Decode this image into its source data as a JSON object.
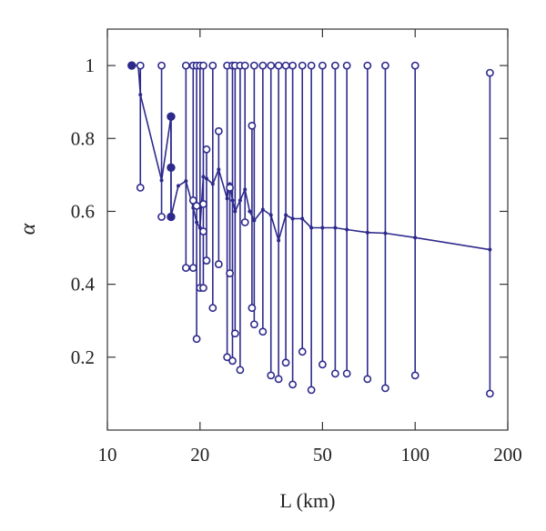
{
  "chart_data": {
    "type": "line",
    "title": "",
    "xlabel": "L (km)",
    "ylabel": "α",
    "x_scale": "log",
    "xlim": [
      10,
      200
    ],
    "ylim": [
      0.0,
      1.1
    ],
    "x_ticks": [
      10,
      20,
      50,
      100,
      200
    ],
    "y_ticks": [
      0.2,
      0.4,
      0.6,
      0.8,
      1.0
    ],
    "x_tick_labels": [
      "10",
      "20",
      "50",
      "100",
      "200"
    ],
    "y_tick_labels": [
      "0.2",
      "0.4",
      "0.6",
      "0.8",
      "1"
    ],
    "grid": false,
    "legend": "none",
    "color": "#2e2a8c",
    "mean_line": {
      "x": [
        12.0,
        12.6,
        12.8,
        15.0,
        16.1,
        16.1,
        16.1,
        17.0,
        18.0,
        19.0,
        19.5,
        20.0,
        20.5,
        21.0,
        22.0,
        23.0,
        24.5,
        25.0,
        25.5,
        26.0,
        27.0,
        28.0,
        29.0,
        30.0,
        32.0,
        34.0,
        36.0,
        38.0,
        40.0,
        43.0,
        46.0,
        50.0,
        55.0,
        60.0,
        70.0,
        80.0,
        100.0,
        175.0
      ],
      "y": [
        1.0,
        1.0,
        0.92,
        0.685,
        0.86,
        0.72,
        0.585,
        0.67,
        0.683,
        0.61,
        0.57,
        0.555,
        0.695,
        0.69,
        0.675,
        0.715,
        0.635,
        0.675,
        0.63,
        0.6,
        0.63,
        0.66,
        0.6,
        0.575,
        0.605,
        0.59,
        0.52,
        0.59,
        0.58,
        0.58,
        0.555,
        0.555,
        0.555,
        0.55,
        0.542,
        0.54,
        0.528,
        0.495
      ]
    },
    "ranges": [
      {
        "x": 12.8,
        "min": 0.665,
        "max": 1.0
      },
      {
        "x": 15.0,
        "min": 0.585,
        "max": 1.0
      },
      {
        "x": 16.1,
        "min": 0.585,
        "max": 0.86
      },
      {
        "x": 18.0,
        "min": 0.445,
        "max": 1.0
      },
      {
        "x": 19.0,
        "min": 0.445,
        "max": 1.0
      },
      {
        "x": 19.5,
        "min": 0.25,
        "max": 1.0
      },
      {
        "x": 20.0,
        "min": 0.39,
        "max": 1.0
      },
      {
        "x": 20.5,
        "min": 0.39,
        "max": 1.0
      },
      {
        "x": 21.0,
        "min": 0.465,
        "max": 0.77
      },
      {
        "x": 22.0,
        "min": 0.335,
        "max": 1.0
      },
      {
        "x": 23.0,
        "min": 0.455,
        "max": 0.82
      },
      {
        "x": 24.5,
        "min": 0.2,
        "max": 1.0
      },
      {
        "x": 25.0,
        "min": 0.43,
        "max": 0.665
      },
      {
        "x": 25.5,
        "min": 0.19,
        "max": 1.0
      },
      {
        "x": 26.0,
        "min": 0.265,
        "max": 1.0
      },
      {
        "x": 27.0,
        "min": 0.165,
        "max": 1.0
      },
      {
        "x": 28.0,
        "min": 0.57,
        "max": 1.0
      },
      {
        "x": 29.5,
        "min": 0.335,
        "max": 0.835
      },
      {
        "x": 30.0,
        "min": 0.29,
        "max": 1.0
      },
      {
        "x": 32.0,
        "min": 0.27,
        "max": 1.0
      },
      {
        "x": 34.0,
        "min": 0.15,
        "max": 1.0
      },
      {
        "x": 36.0,
        "min": 0.14,
        "max": 1.0
      },
      {
        "x": 38.0,
        "min": 0.185,
        "max": 1.0
      },
      {
        "x": 40.0,
        "min": 0.125,
        "max": 1.0
      },
      {
        "x": 43.0,
        "min": 0.215,
        "max": 1.0
      },
      {
        "x": 46.0,
        "min": 0.11,
        "max": 1.0
      },
      {
        "x": 50.0,
        "min": 0.18,
        "max": 1.0
      },
      {
        "x": 55.0,
        "min": 0.155,
        "max": 1.0
      },
      {
        "x": 60.0,
        "min": 0.155,
        "max": 1.0
      },
      {
        "x": 70.0,
        "min": 0.14,
        "max": 1.0
      },
      {
        "x": 80.0,
        "min": 0.115,
        "max": 1.0
      },
      {
        "x": 100.0,
        "min": 0.15,
        "max": 1.0
      },
      {
        "x": 175.0,
        "min": 0.1,
        "max": 0.98
      }
    ],
    "extra_open_markers": [
      {
        "x": 20.5,
        "y": 0.62
      },
      {
        "x": 20.5,
        "y": 0.545
      },
      {
        "x": 19.0,
        "y": 0.63
      },
      {
        "x": 19.5,
        "y": 0.615
      }
    ],
    "filled_markers": [
      {
        "x": 12.0,
        "y": 1.0
      },
      {
        "x": 16.1,
        "y": 0.86
      },
      {
        "x": 16.1,
        "y": 0.72
      },
      {
        "x": 16.1,
        "y": 0.585
      }
    ]
  }
}
